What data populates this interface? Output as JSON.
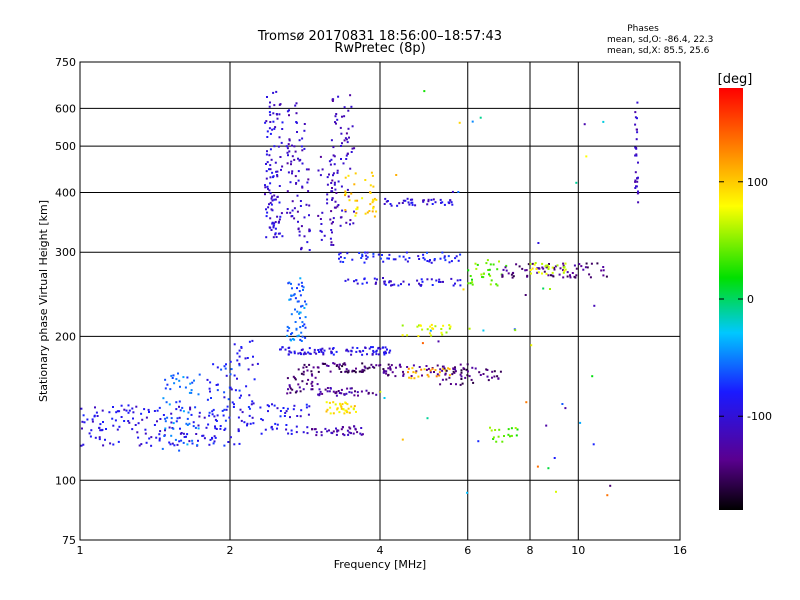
{
  "chart_data": {
    "type": "scatter",
    "title": "Tromsø 20170831 18:56:00–18:57:43",
    "subtitle": "RwPretec (8p)",
    "xlabel": "Frequency [MHz]",
    "ylabel": "Stationary phase Virtual Height [km]",
    "x_scale": "log",
    "y_scale": "log",
    "xlim": [
      1,
      16
    ],
    "ylim": [
      75,
      750
    ],
    "x_ticks": [
      1,
      2,
      4,
      6,
      8,
      10,
      16
    ],
    "y_ticks": [
      75,
      100,
      200,
      300,
      400,
      500,
      600,
      750
    ],
    "grid": true,
    "phases_box": {
      "title": "Phases",
      "line1": "mean, sd,O: -86.4, 22.3",
      "line2": "mean, sd,X:  85.5, 25.6"
    },
    "colorbar": {
      "label": "[deg]",
      "range": [
        -180,
        180
      ],
      "ticks": [
        100,
        0,
        -100
      ],
      "colormap": "rainbow (black-purple-blue-cyan-green-yellow-red)"
    },
    "traces": [
      {
        "x_range": [
          1.0,
          1.9
        ],
        "h_range": [
          118,
          145
        ],
        "phase": -95,
        "count": 140
      },
      {
        "x_range": [
          1.45,
          1.75
        ],
        "h_range": [
          115,
          168
        ],
        "phase": -55,
        "count": 60
      },
      {
        "x_range": [
          1.8,
          2.1
        ],
        "h_range": [
          118,
          175
        ],
        "phase": -80,
        "count": 60
      },
      {
        "x_range": [
          2.05,
          2.9
        ],
        "h_range": [
          125,
          145
        ],
        "phase": -90,
        "count": 60
      },
      {
        "x_range": [
          2.0,
          2.3
        ],
        "h_range": [
          145,
          205
        ],
        "phase": -90,
        "count": 25
      },
      {
        "x_range": [
          2.35,
          2.55
        ],
        "h_range": [
          320,
          650
        ],
        "phase": -100,
        "count": 110
      },
      {
        "x_range": [
          2.6,
          2.75
        ],
        "h_range": [
          330,
          620
        ],
        "phase": -110,
        "count": 50
      },
      {
        "x_range": [
          2.75,
          2.9
        ],
        "h_range": [
          300,
          560
        ],
        "phase": -110,
        "count": 35
      },
      {
        "x_range": [
          2.6,
          2.85
        ],
        "h_range": [
          195,
          265
        ],
        "phase": -55,
        "count": 60
      },
      {
        "x_range": [
          3.0,
          3.25
        ],
        "h_range": [
          310,
          480
        ],
        "phase": -115,
        "count": 40
      },
      {
        "x_range": [
          3.2,
          3.55
        ],
        "h_range": [
          340,
          640
        ],
        "phase": -115,
        "count": 70
      },
      {
        "x_range": [
          3.4,
          3.95
        ],
        "h_range": [
          355,
          440
        ],
        "phase": 95,
        "count": 40
      },
      {
        "x_range": [
          2.5,
          4.2
        ],
        "h_range": [
          183,
          190
        ],
        "phase": -95,
        "count": 90
      },
      {
        "x_range": [
          2.6,
          3.0
        ],
        "h_range": [
          150,
          175
        ],
        "phase": -140,
        "count": 40
      },
      {
        "x_range": [
          3.0,
          4.2
        ],
        "h_range": [
          168,
          176
        ],
        "phase": -145,
        "count": 55
      },
      {
        "x_range": [
          3.0,
          4.0
        ],
        "h_range": [
          150,
          156
        ],
        "phase": -130,
        "count": 40
      },
      {
        "x_range": [
          3.1,
          3.6
        ],
        "h_range": [
          138,
          146
        ],
        "phase": 90,
        "count": 35
      },
      {
        "x_range": [
          2.9,
          3.7
        ],
        "h_range": [
          124,
          130
        ],
        "phase": -125,
        "count": 40
      },
      {
        "x_range": [
          4.0,
          6.0
        ],
        "h_range": [
          165,
          175
        ],
        "phase": -140,
        "count": 45
      },
      {
        "x_range": [
          4.5,
          5.6
        ],
        "h_range": [
          163,
          172
        ],
        "phase": 110,
        "count": 25
      },
      {
        "x_range": [
          5.2,
          7.0
        ],
        "h_range": [
          158,
          172
        ],
        "phase": -145,
        "count": 45
      },
      {
        "x_range": [
          4.4,
          5.6
        ],
        "h_range": [
          200,
          212
        ],
        "phase": 70,
        "count": 25
      },
      {
        "x_range": [
          4.0,
          5.6
        ],
        "h_range": [
          375,
          388
        ],
        "phase": -100,
        "count": 40
      },
      {
        "x_range": [
          3.3,
          5.8
        ],
        "h_range": [
          285,
          300
        ],
        "phase": -85,
        "count": 60
      },
      {
        "x_range": [
          3.3,
          5.8
        ],
        "h_range": [
          255,
          265
        ],
        "phase": -95,
        "count": 50
      },
      {
        "x_range": [
          6.0,
          7.2
        ],
        "h_range": [
          255,
          290
        ],
        "phase": 40,
        "count": 30
      },
      {
        "x_range": [
          7.0,
          11.5
        ],
        "h_range": [
          265,
          285
        ],
        "phase": -140,
        "count": 70
      },
      {
        "x_range": [
          8.0,
          9.5
        ],
        "h_range": [
          270,
          285
        ],
        "phase": 75,
        "count": 25
      },
      {
        "x_range": [
          13.0,
          13.2
        ],
        "h_range": [
          380,
          620
        ],
        "phase": -110,
        "count": 30
      },
      {
        "x_range": [
          6.6,
          7.6
        ],
        "h_range": [
          120,
          130
        ],
        "phase": 40,
        "count": 18
      },
      {
        "x_range": [
          4.0,
          12.0
        ],
        "h_range": [
          90,
          700
        ],
        "phase": 0,
        "count": 45
      }
    ]
  }
}
